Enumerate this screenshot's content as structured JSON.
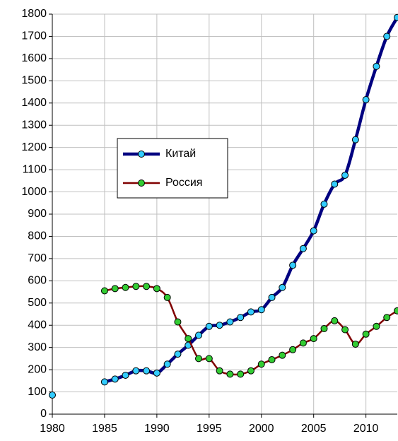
{
  "chart_data": {
    "type": "line",
    "x": [
      1980,
      1981,
      1982,
      1983,
      1984,
      1985,
      1986,
      1987,
      1988,
      1989,
      1990,
      1991,
      1992,
      1993,
      1994,
      1995,
      1996,
      1997,
      1998,
      1999,
      2000,
      2001,
      2002,
      2003,
      2004,
      2005,
      2006,
      2007,
      2008,
      2009,
      2010,
      2011,
      2012,
      2013
    ],
    "series": [
      {
        "name": "Китай",
        "color": "#000080",
        "marker_color": "#33ccff",
        "values": [
          86,
          null,
          null,
          null,
          null,
          145,
          158,
          175,
          195,
          195,
          185,
          225,
          270,
          310,
          355,
          395,
          400,
          415,
          435,
          460,
          470,
          525,
          570,
          670,
          745,
          825,
          945,
          1035,
          1075,
          1235,
          1415,
          1565,
          1700,
          1785
        ]
      },
      {
        "name": "Россия",
        "color": "#800000",
        "marker_color": "#33cc33",
        "values": [
          null,
          null,
          null,
          null,
          null,
          555,
          565,
          570,
          575,
          575,
          565,
          525,
          415,
          340,
          250,
          250,
          195,
          180,
          180,
          195,
          225,
          245,
          265,
          290,
          320,
          340,
          385,
          420,
          380,
          315,
          360,
          395,
          435,
          465
        ]
      }
    ],
    "xlim": [
      1980,
      2013
    ],
    "xticks": [
      1980,
      1985,
      1990,
      1995,
      2000,
      2005,
      2010
    ],
    "ylim": [
      0,
      1800
    ],
    "yticks": [
      0,
      100,
      200,
      300,
      400,
      500,
      600,
      700,
      800,
      900,
      1000,
      1100,
      1200,
      1300,
      1400,
      1500,
      1600,
      1700,
      1800
    ],
    "grid": true
  }
}
